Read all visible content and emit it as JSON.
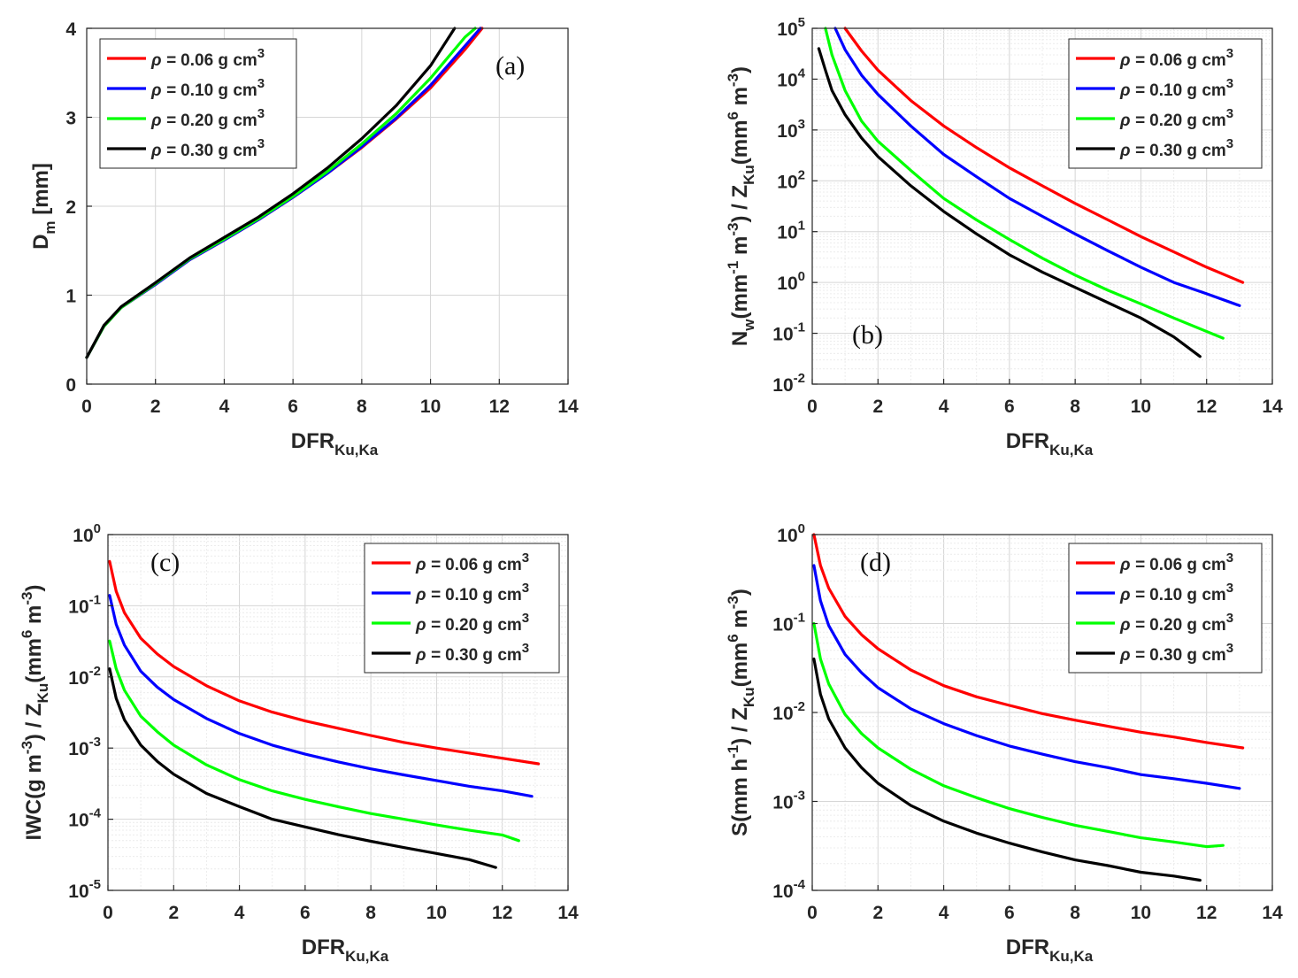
{
  "chart_data": [
    {
      "panel": "a",
      "type": "line",
      "panel_label": "(a)",
      "yscale": "linear",
      "xlabel": {
        "main": "DFR",
        "sub": "Ku,Ka"
      },
      "ylabel": {
        "main": "D",
        "sub": "m",
        "rest": " [mm]"
      },
      "xlim": [
        0,
        14
      ],
      "ylim": [
        0,
        4
      ],
      "xticks": [
        0,
        2,
        4,
        6,
        8,
        10,
        12,
        14
      ],
      "yticks": [
        0,
        1,
        2,
        3,
        4
      ],
      "legend": "top-left",
      "series": [
        {
          "name": "ρ = 0.06 g cm3",
          "color": "#ff0000",
          "x": [
            0,
            0.5,
            1,
            2,
            3,
            4,
            5,
            6,
            7,
            8,
            9,
            10,
            11,
            11.5
          ],
          "y": [
            0.3,
            0.65,
            0.86,
            1.12,
            1.4,
            1.62,
            1.85,
            2.1,
            2.37,
            2.66,
            2.98,
            3.33,
            3.76,
            4.0
          ]
        },
        {
          "name": "ρ = 0.10 g cm3",
          "color": "#0000ff",
          "x": [
            0,
            0.5,
            1,
            2,
            3,
            4,
            5,
            6,
            7,
            8,
            9,
            10,
            11,
            11.45
          ],
          "y": [
            0.3,
            0.65,
            0.86,
            1.12,
            1.4,
            1.62,
            1.85,
            2.1,
            2.37,
            2.67,
            2.99,
            3.36,
            3.8,
            4.0
          ]
        },
        {
          "name": "ρ = 0.20 g cm3",
          "color": "#00ff00",
          "x": [
            0,
            0.5,
            1,
            2,
            3,
            4,
            5,
            6,
            7,
            8,
            9,
            10,
            11,
            11.3
          ],
          "y": [
            0.3,
            0.65,
            0.86,
            1.13,
            1.41,
            1.63,
            1.86,
            2.11,
            2.39,
            2.7,
            3.04,
            3.44,
            3.9,
            4.0
          ]
        },
        {
          "name": "ρ = 0.30 g cm3",
          "color": "#000000",
          "x": [
            0,
            0.5,
            1,
            2,
            3,
            4,
            5,
            6,
            7,
            8,
            9,
            10,
            10.7
          ],
          "y": [
            0.3,
            0.66,
            0.87,
            1.14,
            1.42,
            1.65,
            1.88,
            2.14,
            2.43,
            2.76,
            3.13,
            3.58,
            4.0
          ]
        }
      ]
    },
    {
      "panel": "b",
      "type": "line",
      "panel_label": "(b)",
      "yscale": "log",
      "xlabel": {
        "main": "DFR",
        "sub": "Ku,Ka"
      },
      "ylabel_parts": [
        {
          "t": "N",
          "s": "n"
        },
        {
          "t": "w",
          "s": "sub"
        },
        {
          "t": "(mm",
          "s": "n"
        },
        {
          "t": "-1",
          "s": "sup"
        },
        {
          "t": " m",
          "s": "n"
        },
        {
          "t": "-3",
          "s": "sup"
        },
        {
          "t": ") / Z",
          "s": "n"
        },
        {
          "t": "Ku",
          "s": "sub"
        },
        {
          "t": "(mm",
          "s": "n"
        },
        {
          "t": "6",
          "s": "sup"
        },
        {
          "t": " m",
          "s": "n"
        },
        {
          "t": "-3",
          "s": "sup"
        },
        {
          "t": ")",
          "s": "n"
        }
      ],
      "xlim": [
        0,
        14
      ],
      "ylim_exp": [
        -2,
        5
      ],
      "xticks": [
        0,
        2,
        4,
        6,
        8,
        10,
        12,
        14
      ],
      "ytick_exponents": [
        "-2",
        "-1",
        "0",
        "1",
        "2",
        "3",
        "4",
        "5"
      ],
      "legend": "top-right",
      "series": [
        {
          "name": "ρ = 0.06 g cm3",
          "color": "#ff0000",
          "x": [
            1.0,
            1.5,
            2,
            3,
            4,
            5,
            6,
            7,
            8,
            9,
            10,
            11,
            12,
            13.1
          ],
          "y": [
            100000,
            36000,
            15000,
            3800,
            1200,
            450,
            180,
            80,
            36,
            17,
            8,
            4,
            2,
            1
          ]
        },
        {
          "name": "ρ = 0.10 g cm3",
          "color": "#0000ff",
          "x": [
            0.7,
            1,
            1.5,
            2,
            3,
            4,
            5,
            6,
            7,
            8,
            9,
            10,
            11,
            12,
            13
          ],
          "y": [
            100000,
            38000,
            12000,
            5000,
            1200,
            330,
            120,
            45,
            20,
            9,
            4.2,
            2,
            1,
            0.6,
            0.35
          ]
        },
        {
          "name": "ρ = 0.20 g cm3",
          "color": "#00ff00",
          "x": [
            0.4,
            0.6,
            1,
            1.5,
            2,
            3,
            4,
            5,
            6,
            7,
            8,
            9,
            10,
            11,
            12.5
          ],
          "y": [
            100000,
            30000,
            6000,
            1500,
            600,
            160,
            45,
            17,
            7,
            3,
            1.4,
            0.7,
            0.38,
            0.2,
            0.08
          ]
        },
        {
          "name": "ρ = 0.30 g cm3",
          "color": "#000000",
          "x": [
            0.2,
            0.4,
            0.6,
            1,
            1.5,
            2,
            3,
            4,
            5,
            6,
            7,
            8,
            9,
            10,
            11,
            11.8
          ],
          "y": [
            40000,
            15000,
            6000,
            2000,
            700,
            300,
            80,
            25,
            9,
            3.5,
            1.6,
            0.8,
            0.4,
            0.2,
            0.085,
            0.035
          ]
        }
      ],
      "legend_entries_note": "same as panel a"
    },
    {
      "panel": "c",
      "type": "line",
      "panel_label": "(c)",
      "yscale": "log",
      "xlabel": {
        "main": "DFR",
        "sub": "Ku,Ka"
      },
      "ylabel_parts": [
        {
          "t": "IWC(g m",
          "s": "n"
        },
        {
          "t": "-3",
          "s": "sup"
        },
        {
          "t": ") / Z",
          "s": "n"
        },
        {
          "t": "Ku",
          "s": "sub"
        },
        {
          "t": "(mm",
          "s": "n"
        },
        {
          "t": "6",
          "s": "sup"
        },
        {
          "t": " m",
          "s": "n"
        },
        {
          "t": "-3",
          "s": "sup"
        },
        {
          "t": ")",
          "s": "n"
        }
      ],
      "xlim": [
        0,
        14
      ],
      "ylim_exp": [
        -5,
        0
      ],
      "xticks": [
        0,
        2,
        4,
        6,
        8,
        10,
        12,
        14
      ],
      "ytick_exponents": [
        "-5",
        "-4",
        "-3",
        "-2",
        "-1",
        "0"
      ],
      "legend": "top-right",
      "series": [
        {
          "name": "ρ = 0.06 g cm3",
          "color": "#ff0000",
          "x": [
            0.05,
            0.25,
            0.5,
            1,
            1.5,
            2,
            3,
            4,
            5,
            6,
            7,
            8,
            9,
            10,
            11,
            12,
            13.1
          ],
          "y": [
            0.42,
            0.16,
            0.08,
            0.035,
            0.021,
            0.014,
            0.0075,
            0.0046,
            0.0032,
            0.0024,
            0.0019,
            0.0015,
            0.0012,
            0.001,
            0.00085,
            0.00072,
            0.0006
          ]
        },
        {
          "name": "ρ = 0.10 g cm3",
          "color": "#0000ff",
          "x": [
            0.05,
            0.25,
            0.5,
            1,
            1.5,
            2,
            3,
            4,
            5,
            6,
            7,
            8,
            9,
            10,
            11,
            12,
            12.9
          ],
          "y": [
            0.14,
            0.055,
            0.028,
            0.012,
            0.0072,
            0.0048,
            0.0026,
            0.0016,
            0.0011,
            0.00082,
            0.00064,
            0.00051,
            0.00042,
            0.00035,
            0.00029,
            0.00025,
            0.00021
          ]
        },
        {
          "name": "ρ = 0.20 g cm3",
          "color": "#00ff00",
          "x": [
            0.05,
            0.25,
            0.5,
            1,
            1.5,
            2,
            3,
            4,
            5,
            6,
            7,
            8,
            9,
            10,
            11,
            12,
            12.5
          ],
          "y": [
            0.032,
            0.013,
            0.0065,
            0.0028,
            0.0017,
            0.0011,
            0.00058,
            0.00036,
            0.00025,
            0.00019,
            0.00015,
            0.00012,
            0.0001,
            8.3e-05,
            7e-05,
            6e-05,
            5e-05
          ]
        },
        {
          "name": "ρ = 0.30 g cm3",
          "color": "#000000",
          "x": [
            0.05,
            0.25,
            0.5,
            1,
            1.5,
            2,
            3,
            4,
            5,
            6,
            7,
            8,
            9,
            10,
            11,
            11.8
          ],
          "y": [
            0.013,
            0.005,
            0.0025,
            0.0011,
            0.00065,
            0.00043,
            0.00023,
            0.00015,
            0.0001,
            7.8e-05,
            6.1e-05,
            4.9e-05,
            4e-05,
            3.3e-05,
            2.7e-05,
            2.1e-05
          ]
        }
      ]
    },
    {
      "panel": "d",
      "type": "line",
      "panel_label": "(d)",
      "yscale": "log",
      "xlabel": {
        "main": "DFR",
        "sub": "Ku,Ka"
      },
      "ylabel_parts": [
        {
          "t": "S(mm h",
          "s": "n"
        },
        {
          "t": "-1",
          "s": "sup"
        },
        {
          "t": ") / Z",
          "s": "n"
        },
        {
          "t": "Ku",
          "s": "sub"
        },
        {
          "t": "(mm",
          "s": "n"
        },
        {
          "t": "6",
          "s": "sup"
        },
        {
          "t": " m",
          "s": "n"
        },
        {
          "t": "-3",
          "s": "sup"
        },
        {
          "t": ")",
          "s": "n"
        }
      ],
      "xlim": [
        0,
        14
      ],
      "ylim_exp": [
        -4,
        0
      ],
      "xticks": [
        0,
        2,
        4,
        6,
        8,
        10,
        12,
        14
      ],
      "ytick_exponents": [
        "-4",
        "-3",
        "-2",
        "-1",
        "0"
      ],
      "legend": "top-right",
      "series": [
        {
          "name": "ρ = 0.06 g cm3",
          "color": "#ff0000",
          "x": [
            0.05,
            0.25,
            0.5,
            1,
            1.5,
            2,
            3,
            4,
            5,
            6,
            7,
            8,
            9,
            10,
            11,
            12,
            13.1
          ],
          "y": [
            1.0,
            0.45,
            0.25,
            0.12,
            0.075,
            0.052,
            0.03,
            0.02,
            0.015,
            0.012,
            0.0097,
            0.0082,
            0.007,
            0.006,
            0.0053,
            0.0046,
            0.004
          ]
        },
        {
          "name": "ρ = 0.10 g cm3",
          "color": "#0000ff",
          "x": [
            0.05,
            0.25,
            0.5,
            1,
            1.5,
            2,
            3,
            4,
            5,
            6,
            7,
            8,
            9,
            10,
            11,
            12,
            13
          ],
          "y": [
            0.45,
            0.18,
            0.095,
            0.045,
            0.028,
            0.019,
            0.011,
            0.0075,
            0.0055,
            0.0042,
            0.0034,
            0.0028,
            0.0024,
            0.002,
            0.0018,
            0.0016,
            0.0014
          ]
        },
        {
          "name": "ρ = 0.20 g cm3",
          "color": "#00ff00",
          "x": [
            0.05,
            0.25,
            0.5,
            1,
            1.5,
            2,
            3,
            4,
            5,
            6,
            7,
            8,
            9,
            10,
            11,
            12,
            12.5
          ],
          "y": [
            0.1,
            0.04,
            0.021,
            0.0095,
            0.0058,
            0.004,
            0.0023,
            0.0015,
            0.0011,
            0.00083,
            0.00066,
            0.00054,
            0.00046,
            0.00039,
            0.00035,
            0.00031,
            0.00032
          ]
        },
        {
          "name": "ρ = 0.30 g cm3",
          "color": "#000000",
          "x": [
            0.05,
            0.25,
            0.5,
            1,
            1.5,
            2,
            3,
            4,
            5,
            6,
            7,
            8,
            9,
            10,
            11,
            11.8
          ],
          "y": [
            0.04,
            0.016,
            0.0085,
            0.004,
            0.0024,
            0.0016,
            0.0009,
            0.0006,
            0.00044,
            0.00034,
            0.00027,
            0.00022,
            0.00019,
            0.00016,
            0.000145,
            0.00013
          ]
        }
      ]
    }
  ],
  "legend_labels": {
    "prefix": "ρ = ",
    "entries": [
      "0.06 g cm",
      "0.10 g cm",
      "0.20 g cm",
      "0.30 g cm"
    ],
    "superscript": "3"
  },
  "log_tick_base": "10"
}
